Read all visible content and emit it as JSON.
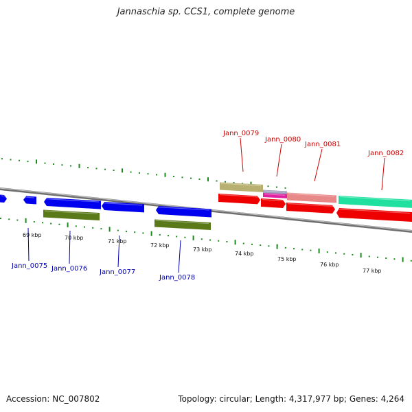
{
  "title": "Jannaschia sp. CCS1, complete genome",
  "footer": {
    "accession": "Accession: NC_007802",
    "summary": "Topology: circular; Length: 4,317,977 bp; Genes: 4,264"
  },
  "colors": {
    "bottom_label": "#0000b0",
    "top_label": "#cc0000",
    "tick": "#1a8a1a",
    "backbone": "#808080"
  },
  "kbp_ticks": [
    "69 kbp",
    "70 kbp",
    "71 kbp",
    "72 kbp",
    "73 kbp",
    "74 kbp",
    "75 kbp",
    "76 kbp",
    "77 kbp"
  ],
  "genes_below": [
    {
      "name": "Jann_0075"
    },
    {
      "name": "Jann_0076"
    },
    {
      "name": "Jann_0077"
    },
    {
      "name": "Jann_0078"
    }
  ],
  "genes_above": [
    {
      "name": "Jann_0079"
    },
    {
      "name": "Jann_0080"
    },
    {
      "name": "Jann_0081"
    },
    {
      "name": "Jann_0082"
    }
  ],
  "feature_colors": {
    "cds_forward": "#0000ee",
    "cds_sub": "#5a7a1a",
    "rna_red": "#ee0000",
    "khaki": "#b8b070",
    "magenta": "#e020a0",
    "pink": "#e88888",
    "green": "#20e0a0"
  }
}
